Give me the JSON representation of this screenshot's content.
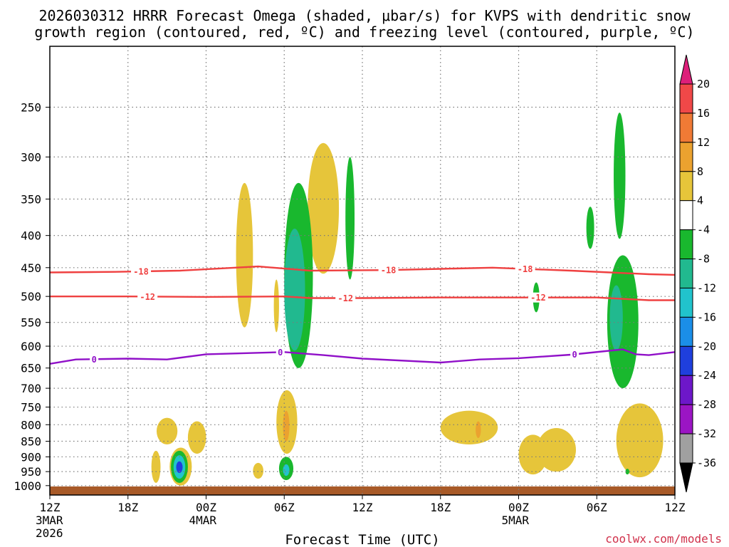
{
  "chart_data": {
    "type": "contour",
    "title_line1": "2026030312 HRRR Forecast Omega (shaded, μbar/s) for KVPS with dendritic snow",
    "title_line2": "growth region (contoured, red, ºC) and freezing level (contoured, purple, ºC)",
    "xlabel": "Forecast Time (UTC)",
    "credit": "coolwx.com/models",
    "x_range_hours": [
      0,
      48
    ],
    "x_ticks": [
      {
        "h": 0,
        "label": "12Z",
        "sub1": "3MAR",
        "sub2": "2026"
      },
      {
        "h": 6,
        "label": "18Z"
      },
      {
        "h": 12,
        "label": "00Z",
        "sub1": "4MAR"
      },
      {
        "h": 18,
        "label": "06Z"
      },
      {
        "h": 24,
        "label": "12Z"
      },
      {
        "h": 30,
        "label": "18Z"
      },
      {
        "h": 36,
        "label": "00Z",
        "sub1": "5MAR"
      },
      {
        "h": 42,
        "label": "06Z"
      },
      {
        "h": 48,
        "label": "12Z"
      }
    ],
    "y_axis": "pressure (hPa), log scale, inverted",
    "y_range_hpa": [
      1035,
      200
    ],
    "y_ticks": [
      250,
      300,
      350,
      400,
      450,
      500,
      550,
      600,
      650,
      700,
      750,
      800,
      850,
      900,
      950,
      1000
    ],
    "colorbar": {
      "labels": [
        "20",
        "16",
        "12",
        "8",
        "4",
        "-4",
        "-8",
        "-12",
        "-16",
        "-20",
        "-24",
        "-28",
        "-32",
        "-36"
      ],
      "colors": [
        "#dd1f7a",
        "#f04848",
        "#f07a35",
        "#eba22f",
        "#e6c53a",
        "#ffffff",
        "#19b82e",
        "#21b98f",
        "#21c3cc",
        "#1b8ee8",
        "#1f3fdd",
        "#6d17c9",
        "#9b15c4",
        "#a0a0a0",
        "#000000"
      ]
    },
    "contour_lines": [
      {
        "name": "-18 C",
        "label": "-18",
        "color": "#ef4040",
        "points": [
          [
            0,
            458
          ],
          [
            5,
            457
          ],
          [
            10,
            455
          ],
          [
            16,
            448
          ],
          [
            20,
            455
          ],
          [
            26,
            454
          ],
          [
            30,
            452
          ],
          [
            34,
            450
          ],
          [
            40,
            455
          ],
          [
            43,
            458
          ],
          [
            46,
            461
          ],
          [
            48,
            462
          ]
        ],
        "label_at": [
          7,
          26,
          36.5
        ]
      },
      {
        "name": "-12 C",
        "label": "-12",
        "color": "#ef4040",
        "points": [
          [
            0,
            500
          ],
          [
            6,
            500
          ],
          [
            12,
            501
          ],
          [
            18,
            500
          ],
          [
            20,
            503
          ],
          [
            24,
            503
          ],
          [
            30,
            502
          ],
          [
            36,
            502
          ],
          [
            42,
            502
          ],
          [
            46,
            507
          ],
          [
            48,
            507
          ]
        ],
        "label_at": [
          7.5,
          22.7,
          37.5
        ]
      },
      {
        "name": "0 C freezing level",
        "label": "0",
        "color": "#9010c8",
        "points": [
          [
            0,
            640
          ],
          [
            2,
            630
          ],
          [
            6,
            628
          ],
          [
            9,
            630
          ],
          [
            12,
            618
          ],
          [
            18,
            613
          ],
          [
            21,
            620
          ],
          [
            24,
            628
          ],
          [
            30,
            637
          ],
          [
            33,
            630
          ],
          [
            36,
            627
          ],
          [
            40,
            619
          ],
          [
            44,
            607
          ],
          [
            45,
            618
          ],
          [
            46,
            620
          ],
          [
            48,
            613
          ]
        ],
        "label_at": [
          3.4,
          17.7,
          40.3
        ]
      }
    ],
    "shaded_regions": [
      {
        "value": 4,
        "t": [
          14.3,
          15.6
        ],
        "p": [
          330,
          560
        ]
      },
      {
        "value": 4,
        "t": [
          19.8,
          22.2
        ],
        "p": [
          285,
          460
        ]
      },
      {
        "value": -4,
        "t": [
          22.7,
          23.4
        ],
        "p": [
          300,
          470
        ]
      },
      {
        "value": 4,
        "t": [
          17.2,
          17.6
        ],
        "p": [
          470,
          570
        ]
      },
      {
        "value": -4,
        "t": [
          18.0,
          20.2
        ],
        "p": [
          330,
          650
        ]
      },
      {
        "value": -8,
        "t": [
          18.0,
          19.6
        ],
        "p": [
          390,
          610
        ]
      },
      {
        "value": 4,
        "t": [
          10.6,
          12.0
        ],
        "p": [
          790,
          890
        ]
      },
      {
        "value": 4,
        "t": [
          8.2,
          9.8
        ],
        "p": [
          780,
          860
        ]
      },
      {
        "value": 4,
        "t": [
          9.2,
          10.9
        ],
        "p": [
          870,
          1000
        ]
      },
      {
        "value": -4,
        "t": [
          9.3,
          10.6
        ],
        "p": [
          880,
          990
        ]
      },
      {
        "value": -12,
        "t": [
          9.5,
          10.4
        ],
        "p": [
          895,
          975
        ]
      },
      {
        "value": -20,
        "t": [
          9.7,
          10.2
        ],
        "p": [
          915,
          955
        ]
      },
      {
        "value": 4,
        "t": [
          7.8,
          8.5
        ],
        "p": [
          880,
          990
        ]
      },
      {
        "value": 4,
        "t": [
          15.6,
          16.4
        ],
        "p": [
          920,
          975
        ]
      },
      {
        "value": 4,
        "t": [
          17.4,
          19.0
        ],
        "p": [
          705,
          890
        ]
      },
      {
        "value": 8,
        "t": [
          17.9,
          18.4
        ],
        "p": [
          760,
          850
        ]
      },
      {
        "value": -4,
        "t": [
          17.6,
          18.7
        ],
        "p": [
          900,
          980
        ]
      },
      {
        "value": -12,
        "t": [
          17.9,
          18.4
        ],
        "p": [
          925,
          965
        ]
      },
      {
        "value": 4,
        "t": [
          30.0,
          34.4
        ],
        "p": [
          760,
          860
        ]
      },
      {
        "value": 8,
        "t": [
          32.7,
          33.1
        ],
        "p": [
          790,
          840
        ]
      },
      {
        "value": 4,
        "t": [
          36.0,
          38.2
        ],
        "p": [
          830,
          960
        ]
      },
      {
        "value": 4,
        "t": [
          37.4,
          40.4
        ],
        "p": [
          810,
          950
        ]
      },
      {
        "value": -4,
        "t": [
          41.2,
          41.8
        ],
        "p": [
          360,
          420
        ]
      },
      {
        "value": -4,
        "t": [
          37.1,
          37.6
        ],
        "p": [
          475,
          530
        ]
      },
      {
        "value": -4,
        "t": [
          43.3,
          44.2
        ],
        "p": [
          255,
          405
        ]
      },
      {
        "value": -4,
        "t": [
          42.8,
          45.2
        ],
        "p": [
          430,
          700
        ]
      },
      {
        "value": -8,
        "t": [
          43.0,
          44.0
        ],
        "p": [
          480,
          610
        ]
      },
      {
        "value": 4,
        "t": [
          43.5,
          47.1
        ],
        "p": [
          740,
          970
        ]
      },
      {
        "value": -4,
        "t": [
          44.2,
          44.5
        ],
        "p": [
          940,
          960
        ]
      }
    ]
  }
}
